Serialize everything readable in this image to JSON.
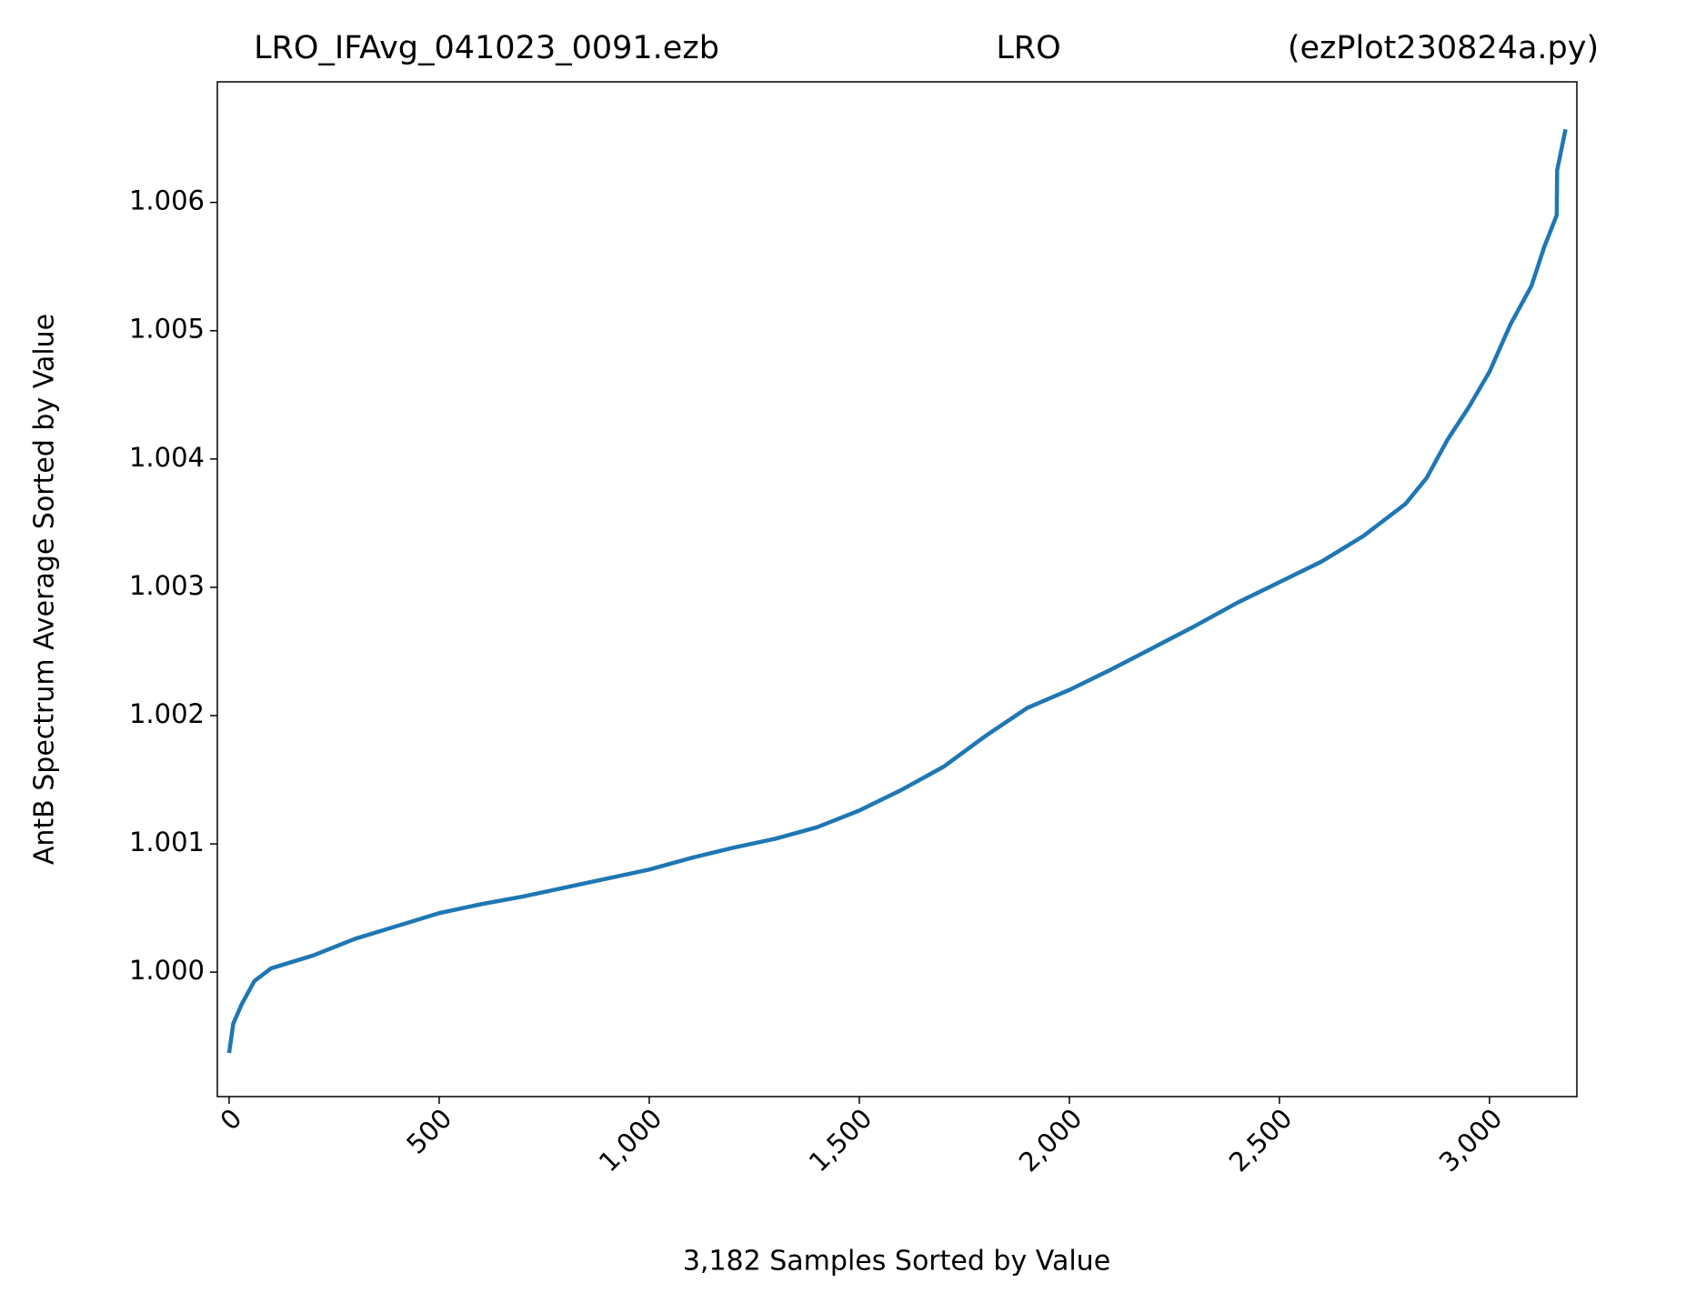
{
  "chart_data": {
    "type": "line",
    "title_parts": [
      "LRO_IFAvg_041023_0091.ezb",
      "LRO",
      "(ezPlot230824a.py)"
    ],
    "x_label": "3,182 Samples Sorted by Value",
    "y_label": "AntB Spectrum Average Sorted by Value",
    "x": [
      0,
      10,
      30,
      60,
      100,
      200,
      300,
      400,
      500,
      600,
      700,
      800,
      900,
      1000,
      1100,
      1200,
      1300,
      1400,
      1500,
      1600,
      1700,
      1800,
      1900,
      2000,
      2100,
      2200,
      2300,
      2400,
      2500,
      2600,
      2700,
      2800,
      2850,
      2900,
      2950,
      3000,
      3050,
      3100,
      3130,
      3160,
      3161,
      3181
    ],
    "series": [
      {
        "color": "#1f77b4",
        "values": [
          0.99937,
          0.9996,
          0.99975,
          0.99993,
          1.00003,
          1.00013,
          1.00026,
          1.00036,
          1.00046,
          1.00053,
          1.00059,
          1.00066,
          1.00073,
          1.0008,
          1.00089,
          1.00097,
          1.00104,
          1.00113,
          1.00126,
          1.00142,
          1.0016,
          1.00184,
          1.00206,
          1.0022,
          1.00236,
          1.00253,
          1.0027,
          1.00288,
          1.00304,
          1.0032,
          1.0034,
          1.00365,
          1.00385,
          1.00415,
          1.0044,
          1.00468,
          1.00505,
          1.00535,
          1.00565,
          1.0059,
          1.00625,
          1.00657
        ]
      }
    ],
    "xlim": [
      -28,
      3208
    ],
    "ylim": [
      0.99903,
      1.00694
    ],
    "xticks": [
      0,
      500,
      {
        "value": 1000,
        "label": "1,000"
      },
      {
        "value": 1500,
        "label": "1,500"
      },
      {
        "value": 2000,
        "label": "2,000"
      },
      {
        "value": 2500,
        "label": "2,500"
      },
      {
        "value": 3000,
        "label": "3,000"
      }
    ],
    "yticks": [
      {
        "value": 1,
        "label": "1.000"
      },
      {
        "value": 1.001,
        "label": "1.001"
      },
      {
        "value": 1.002,
        "label": "1.002"
      },
      {
        "value": 1.003,
        "label": "1.003"
      },
      {
        "value": 1.004,
        "label": "1.004"
      },
      {
        "value": 1.005,
        "label": "1.005"
      },
      {
        "value": 1.006,
        "label": "1.006"
      }
    ],
    "grid": false
  }
}
